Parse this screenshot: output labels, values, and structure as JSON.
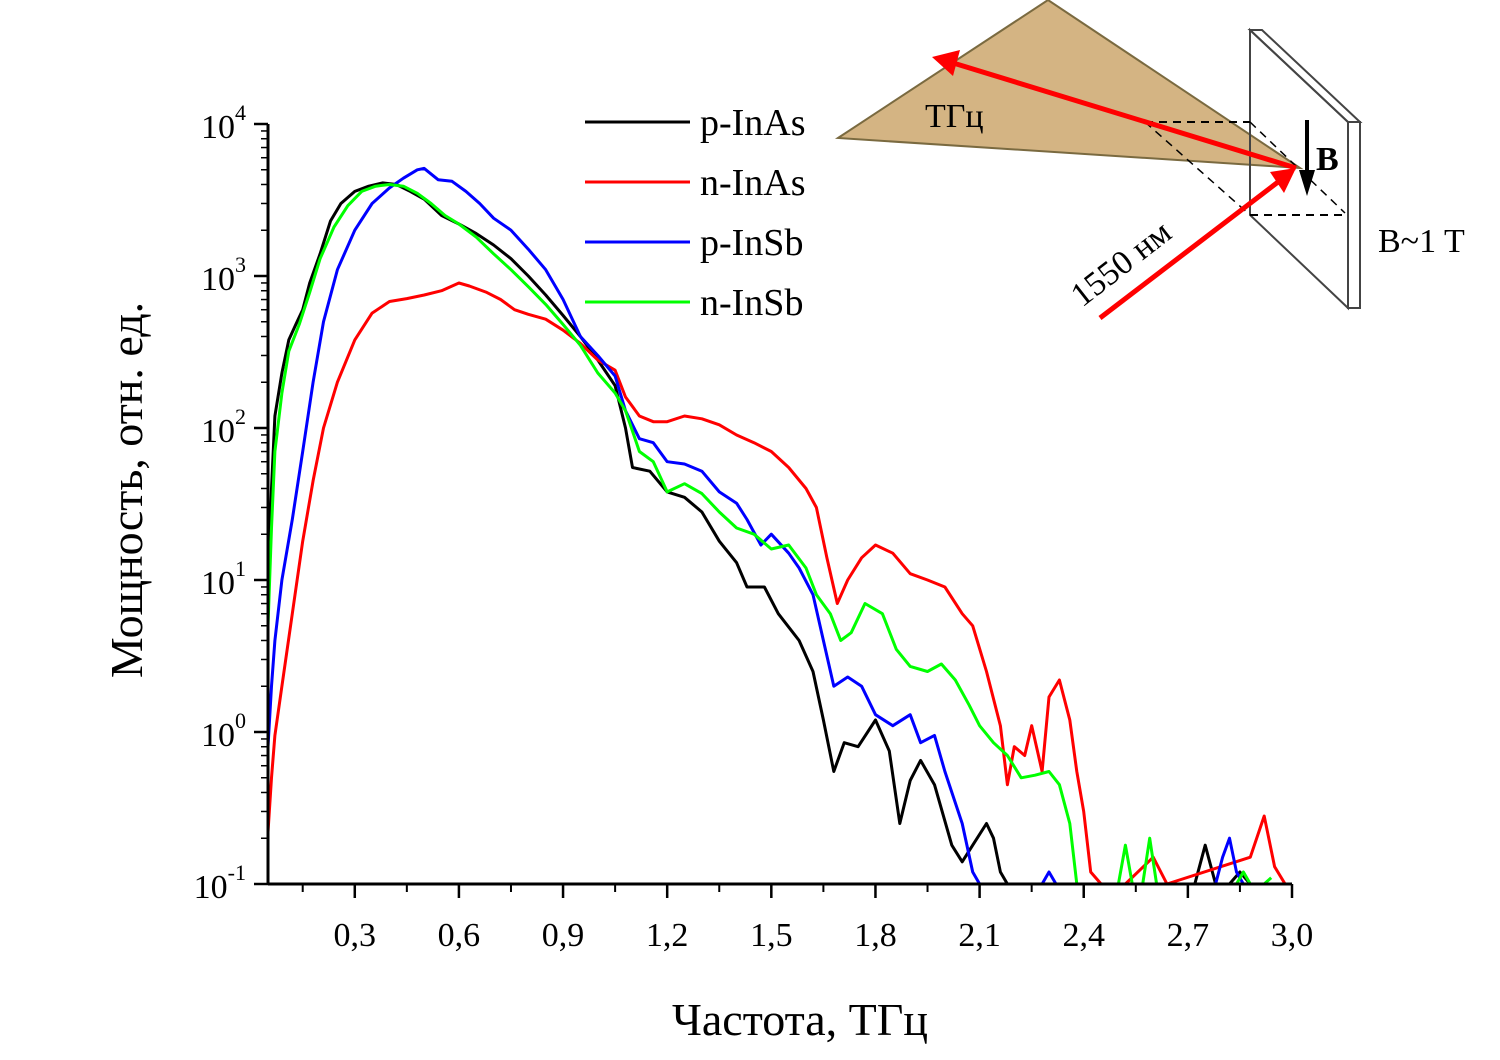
{
  "chart_data": {
    "type": "line",
    "xlabel": "Частота, ТГц",
    "ylabel": "Мощность, отн. ед.",
    "y_scale": "log",
    "xlim": [
      0.05,
      3.0
    ],
    "ylim": [
      0.1,
      10000
    ],
    "x_ticks": [
      0.3,
      0.6,
      0.9,
      1.2,
      1.5,
      1.8,
      2.1,
      2.4,
      2.7,
      3.0
    ],
    "x_tick_labels": [
      "0,3",
      "0,6",
      "0,9",
      "1,2",
      "1,5",
      "1,8",
      "2,1",
      "2,4",
      "2,7",
      "3,0"
    ],
    "y_ticks": [
      {
        "value": 0.1,
        "base": "10",
        "exp": "-1"
      },
      {
        "value": 1,
        "base": "10",
        "exp": "0"
      },
      {
        "value": 10,
        "base": "10",
        "exp": "1"
      },
      {
        "value": 100,
        "base": "10",
        "exp": "2"
      },
      {
        "value": 1000,
        "base": "10",
        "exp": "3"
      },
      {
        "value": 10000,
        "base": "10",
        "exp": "4"
      }
    ],
    "legend_position": "top-center",
    "series": [
      {
        "name": "p-InAs",
        "color": "#000000",
        "points": [
          [
            0.05,
            8
          ],
          [
            0.06,
            40
          ],
          [
            0.07,
            120
          ],
          [
            0.09,
            230
          ],
          [
            0.11,
            380
          ],
          [
            0.13,
            480
          ],
          [
            0.15,
            600
          ],
          [
            0.17,
            900
          ],
          [
            0.2,
            1400
          ],
          [
            0.23,
            2300
          ],
          [
            0.26,
            3000
          ],
          [
            0.3,
            3600
          ],
          [
            0.34,
            3900
          ],
          [
            0.38,
            4100
          ],
          [
            0.42,
            4000
          ],
          [
            0.46,
            3600
          ],
          [
            0.5,
            3200
          ],
          [
            0.55,
            2500
          ],
          [
            0.6,
            2200
          ],
          [
            0.65,
            1900
          ],
          [
            0.7,
            1600
          ],
          [
            0.75,
            1300
          ],
          [
            0.8,
            1000
          ],
          [
            0.85,
            750
          ],
          [
            0.9,
            550
          ],
          [
            0.95,
            400
          ],
          [
            1.0,
            280
          ],
          [
            1.05,
            190
          ],
          [
            1.08,
            100
          ],
          [
            1.1,
            55
          ],
          [
            1.15,
            52
          ],
          [
            1.2,
            38
          ],
          [
            1.25,
            35
          ],
          [
            1.3,
            28
          ],
          [
            1.35,
            18
          ],
          [
            1.4,
            13
          ],
          [
            1.43,
            9
          ],
          [
            1.48,
            9
          ],
          [
            1.52,
            6
          ],
          [
            1.58,
            4
          ],
          [
            1.62,
            2.5
          ],
          [
            1.65,
            1.2
          ],
          [
            1.68,
            0.55
          ],
          [
            1.71,
            0.85
          ],
          [
            1.75,
            0.8
          ],
          [
            1.8,
            1.2
          ],
          [
            1.84,
            0.75
          ],
          [
            1.87,
            0.25
          ],
          [
            1.9,
            0.48
          ],
          [
            1.93,
            0.65
          ],
          [
            1.97,
            0.45
          ],
          [
            2.02,
            0.18
          ],
          [
            2.05,
            0.14
          ],
          [
            2.08,
            0.18
          ],
          [
            2.12,
            0.25
          ],
          [
            2.14,
            0.2
          ],
          [
            2.16,
            0.12
          ],
          [
            2.18,
            0.1
          ],
          [
            2.72,
            0.1
          ],
          [
            2.75,
            0.18
          ],
          [
            2.78,
            0.1
          ],
          [
            2.82,
            0.1
          ],
          [
            2.85,
            0.12
          ],
          [
            2.88,
            0.1
          ]
        ]
      },
      {
        "name": "n-InAs",
        "color": "#ff0000",
        "points": [
          [
            0.05,
            0.22
          ],
          [
            0.06,
            0.5
          ],
          [
            0.07,
            0.95
          ],
          [
            0.09,
            2
          ],
          [
            0.12,
            6
          ],
          [
            0.15,
            18
          ],
          [
            0.18,
            45
          ],
          [
            0.21,
            100
          ],
          [
            0.25,
            200
          ],
          [
            0.3,
            380
          ],
          [
            0.35,
            570
          ],
          [
            0.4,
            680
          ],
          [
            0.45,
            710
          ],
          [
            0.5,
            750
          ],
          [
            0.55,
            800
          ],
          [
            0.6,
            900
          ],
          [
            0.63,
            860
          ],
          [
            0.68,
            780
          ],
          [
            0.72,
            700
          ],
          [
            0.76,
            600
          ],
          [
            0.8,
            560
          ],
          [
            0.85,
            520
          ],
          [
            0.9,
            440
          ],
          [
            0.95,
            360
          ],
          [
            1.0,
            280
          ],
          [
            1.05,
            240
          ],
          [
            1.08,
            160
          ],
          [
            1.12,
            120
          ],
          [
            1.16,
            110
          ],
          [
            1.2,
            110
          ],
          [
            1.25,
            120
          ],
          [
            1.3,
            115
          ],
          [
            1.35,
            105
          ],
          [
            1.4,
            90
          ],
          [
            1.45,
            80
          ],
          [
            1.5,
            70
          ],
          [
            1.55,
            55
          ],
          [
            1.6,
            40
          ],
          [
            1.63,
            30
          ],
          [
            1.66,
            14
          ],
          [
            1.69,
            7
          ],
          [
            1.72,
            10
          ],
          [
            1.76,
            14
          ],
          [
            1.8,
            17
          ],
          [
            1.85,
            15
          ],
          [
            1.9,
            11
          ],
          [
            1.95,
            10
          ],
          [
            2.0,
            9
          ],
          [
            2.05,
            6
          ],
          [
            2.08,
            5
          ],
          [
            2.12,
            2.5
          ],
          [
            2.16,
            1.1
          ],
          [
            2.18,
            0.45
          ],
          [
            2.2,
            0.8
          ],
          [
            2.23,
            0.7
          ],
          [
            2.25,
            1.1
          ],
          [
            2.28,
            0.55
          ],
          [
            2.3,
            1.7
          ],
          [
            2.33,
            2.2
          ],
          [
            2.36,
            1.2
          ],
          [
            2.38,
            0.55
          ],
          [
            2.4,
            0.3
          ],
          [
            2.42,
            0.12
          ],
          [
            2.45,
            0.1
          ],
          [
            2.48,
            0.1
          ],
          [
            2.52,
            0.1
          ],
          [
            2.6,
            0.15
          ],
          [
            2.64,
            0.1
          ],
          [
            2.88,
            0.15
          ],
          [
            2.92,
            0.28
          ],
          [
            2.95,
            0.13
          ],
          [
            2.98,
            0.1
          ]
        ]
      },
      {
        "name": "p-InSb",
        "color": "#0000ff",
        "points": [
          [
            0.05,
            0.8
          ],
          [
            0.06,
            2
          ],
          [
            0.07,
            4
          ],
          [
            0.09,
            10
          ],
          [
            0.12,
            25
          ],
          [
            0.15,
            70
          ],
          [
            0.18,
            200
          ],
          [
            0.21,
            500
          ],
          [
            0.25,
            1100
          ],
          [
            0.3,
            2000
          ],
          [
            0.35,
            3000
          ],
          [
            0.4,
            3800
          ],
          [
            0.44,
            4400
          ],
          [
            0.48,
            5000
          ],
          [
            0.5,
            5100
          ],
          [
            0.54,
            4300
          ],
          [
            0.58,
            4200
          ],
          [
            0.62,
            3600
          ],
          [
            0.66,
            3000
          ],
          [
            0.7,
            2400
          ],
          [
            0.75,
            2000
          ],
          [
            0.8,
            1500
          ],
          [
            0.85,
            1100
          ],
          [
            0.9,
            700
          ],
          [
            0.95,
            400
          ],
          [
            1.0,
            300
          ],
          [
            1.05,
            220
          ],
          [
            1.08,
            130
          ],
          [
            1.12,
            85
          ],
          [
            1.16,
            80
          ],
          [
            1.2,
            60
          ],
          [
            1.25,
            58
          ],
          [
            1.3,
            52
          ],
          [
            1.35,
            38
          ],
          [
            1.4,
            32
          ],
          [
            1.43,
            25
          ],
          [
            1.47,
            17
          ],
          [
            1.5,
            20
          ],
          [
            1.55,
            15
          ],
          [
            1.58,
            12
          ],
          [
            1.62,
            8
          ],
          [
            1.65,
            4
          ],
          [
            1.68,
            2
          ],
          [
            1.72,
            2.3
          ],
          [
            1.76,
            2
          ],
          [
            1.8,
            1.3
          ],
          [
            1.85,
            1.1
          ],
          [
            1.9,
            1.3
          ],
          [
            1.93,
            0.85
          ],
          [
            1.97,
            0.95
          ],
          [
            2.0,
            0.55
          ],
          [
            2.05,
            0.25
          ],
          [
            2.08,
            0.12
          ],
          [
            2.1,
            0.1
          ],
          [
            2.28,
            0.1
          ],
          [
            2.3,
            0.12
          ],
          [
            2.32,
            0.1
          ],
          [
            2.78,
            0.1
          ],
          [
            2.8,
            0.15
          ],
          [
            2.82,
            0.2
          ],
          [
            2.84,
            0.12
          ],
          [
            2.86,
            0.1
          ]
        ]
      },
      {
        "name": "n-InSb",
        "color": "#00ff00",
        "points": [
          [
            0.05,
            5
          ],
          [
            0.06,
            22
          ],
          [
            0.07,
            70
          ],
          [
            0.09,
            170
          ],
          [
            0.11,
            320
          ],
          [
            0.14,
            480
          ],
          [
            0.17,
            780
          ],
          [
            0.2,
            1300
          ],
          [
            0.24,
            2100
          ],
          [
            0.28,
            2900
          ],
          [
            0.32,
            3600
          ],
          [
            0.36,
            3900
          ],
          [
            0.4,
            4000
          ],
          [
            0.44,
            3900
          ],
          [
            0.48,
            3500
          ],
          [
            0.52,
            3000
          ],
          [
            0.56,
            2500
          ],
          [
            0.6,
            2200
          ],
          [
            0.65,
            1800
          ],
          [
            0.7,
            1400
          ],
          [
            0.75,
            1100
          ],
          [
            0.8,
            850
          ],
          [
            0.85,
            650
          ],
          [
            0.9,
            480
          ],
          [
            0.95,
            350
          ],
          [
            1.0,
            230
          ],
          [
            1.05,
            170
          ],
          [
            1.08,
            130
          ],
          [
            1.12,
            70
          ],
          [
            1.16,
            60
          ],
          [
            1.2,
            38
          ],
          [
            1.25,
            43
          ],
          [
            1.3,
            37
          ],
          [
            1.35,
            28
          ],
          [
            1.4,
            22
          ],
          [
            1.45,
            20
          ],
          [
            1.5,
            16
          ],
          [
            1.55,
            17
          ],
          [
            1.6,
            12
          ],
          [
            1.63,
            8
          ],
          [
            1.67,
            6
          ],
          [
            1.7,
            4
          ],
          [
            1.73,
            4.5
          ],
          [
            1.77,
            7
          ],
          [
            1.82,
            6
          ],
          [
            1.86,
            3.5
          ],
          [
            1.9,
            2.7
          ],
          [
            1.95,
            2.5
          ],
          [
            1.99,
            2.8
          ],
          [
            2.03,
            2.2
          ],
          [
            2.07,
            1.5
          ],
          [
            2.1,
            1.1
          ],
          [
            2.14,
            0.85
          ],
          [
            2.18,
            0.7
          ],
          [
            2.22,
            0.5
          ],
          [
            2.26,
            0.52
          ],
          [
            2.3,
            0.55
          ],
          [
            2.33,
            0.45
          ],
          [
            2.36,
            0.25
          ],
          [
            2.38,
            0.1
          ],
          [
            2.5,
            0.1
          ],
          [
            2.52,
            0.18
          ],
          [
            2.54,
            0.1
          ],
          [
            2.57,
            0.1
          ],
          [
            2.59,
            0.2
          ],
          [
            2.61,
            0.1
          ],
          [
            2.64,
            0.1
          ],
          [
            2.84,
            0.1
          ],
          [
            2.86,
            0.12
          ],
          [
            2.88,
            0.1
          ],
          [
            2.92,
            0.1
          ],
          [
            2.94,
            0.11
          ]
        ]
      }
    ]
  },
  "inset": {
    "thz_label": "ТГц",
    "laser_label": "1550 нм",
    "b_label": "B",
    "field_label": "B~1 T",
    "cone_color": "#d4b483",
    "beam_color": "#ff0000"
  }
}
